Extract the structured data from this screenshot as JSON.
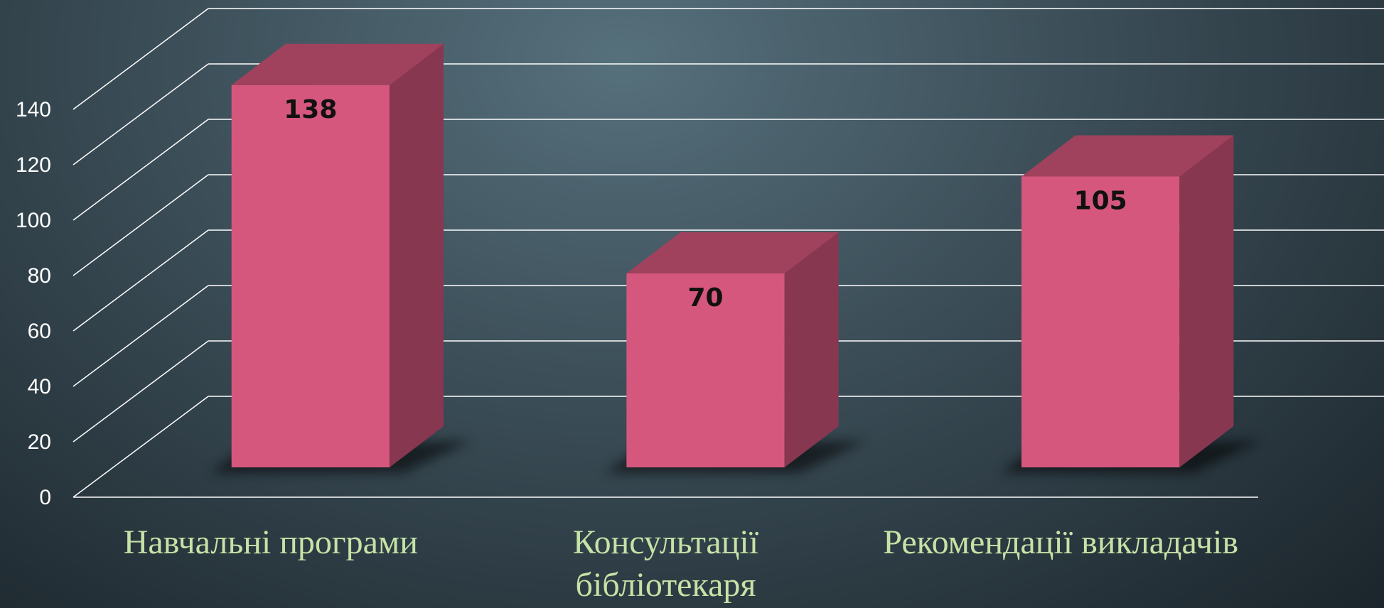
{
  "chart_data": {
    "type": "bar3d",
    "categories": [
      "Навчальні програми",
      "Консультації бібліотекаря",
      "Рекомендації викладачів"
    ],
    "values": [
      138,
      70,
      105
    ],
    "color": "#d6577d",
    "ylim": [
      0,
      140
    ],
    "yticks": [
      0,
      20,
      40,
      60,
      80,
      100,
      120,
      140
    ],
    "grid": true
  }
}
